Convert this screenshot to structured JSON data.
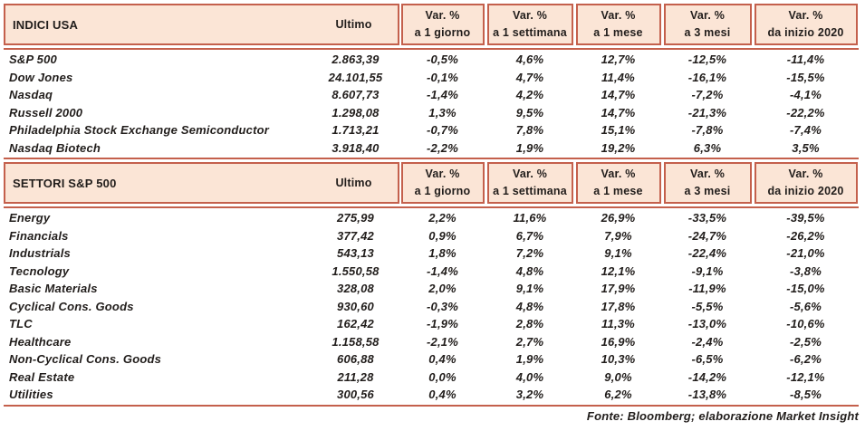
{
  "colors": {
    "header_bg": "#FBE5D6",
    "border": "#C4604C",
    "text": "#211D1B"
  },
  "footer": "Fonte: Bloomberg; elaborazione Market Insight",
  "chart_data": [
    {
      "type": "table",
      "title": "INDICI USA",
      "ultimo_label": "Ultimo",
      "column_headers": [
        {
          "line1": "Var. %",
          "line2": "a 1 giorno"
        },
        {
          "line1": "Var. %",
          "line2": "a 1 settimana"
        },
        {
          "line1": "Var. %",
          "line2": "a 1 mese"
        },
        {
          "line1": "Var. %",
          "line2": "a 3 mesi"
        },
        {
          "line1": "Var. %",
          "line2": "da inizio 2020"
        }
      ],
      "rows": [
        {
          "name": "S&P 500",
          "ultimo": "2.863,39",
          "values": [
            "-0,5%",
            "4,6%",
            "12,7%",
            "-12,5%",
            "-11,4%"
          ]
        },
        {
          "name": "Dow Jones",
          "ultimo": "24.101,55",
          "values": [
            "-0,1%",
            "4,7%",
            "11,4%",
            "-16,1%",
            "-15,5%"
          ]
        },
        {
          "name": "Nasdaq",
          "ultimo": "8.607,73",
          "values": [
            "-1,4%",
            "4,2%",
            "14,7%",
            "-7,2%",
            "-4,1%"
          ]
        },
        {
          "name": "Russell 2000",
          "ultimo": "1.298,08",
          "values": [
            "1,3%",
            "9,5%",
            "14,7%",
            "-21,3%",
            "-22,2%"
          ]
        },
        {
          "name": "Philadelphia Stock Exchange Semiconductor",
          "ultimo": "1.713,21",
          "values": [
            "-0,7%",
            "7,8%",
            "15,1%",
            "-7,8%",
            "-7,4%"
          ]
        },
        {
          "name": "Nasdaq Biotech",
          "ultimo": "3.918,40",
          "values": [
            "-2,2%",
            "1,9%",
            "19,2%",
            "6,3%",
            "3,5%"
          ]
        }
      ]
    },
    {
      "type": "table",
      "title": "SETTORI S&P 500",
      "ultimo_label": "Ultimo",
      "column_headers": [
        {
          "line1": "Var. %",
          "line2": "a 1 giorno"
        },
        {
          "line1": "Var. %",
          "line2": "a 1 settimana"
        },
        {
          "line1": "Var. %",
          "line2": "a 1 mese"
        },
        {
          "line1": "Var. %",
          "line2": "a 3 mesi"
        },
        {
          "line1": "Var. %",
          "line2": "da inizio 2020"
        }
      ],
      "rows": [
        {
          "name": "Energy",
          "ultimo": "275,99",
          "values": [
            "2,2%",
            "11,6%",
            "26,9%",
            "-33,5%",
            "-39,5%"
          ]
        },
        {
          "name": "Financials",
          "ultimo": "377,42",
          "values": [
            "0,9%",
            "6,7%",
            "7,9%",
            "-24,7%",
            "-26,2%"
          ]
        },
        {
          "name": "Industrials",
          "ultimo": "543,13",
          "values": [
            "1,8%",
            "7,2%",
            "9,1%",
            "-22,4%",
            "-21,0%"
          ]
        },
        {
          "name": "Tecnology",
          "ultimo": "1.550,58",
          "values": [
            "-1,4%",
            "4,8%",
            "12,1%",
            "-9,1%",
            "-3,8%"
          ]
        },
        {
          "name": "Basic Materials",
          "ultimo": "328,08",
          "values": [
            "2,0%",
            "9,1%",
            "17,9%",
            "-11,9%",
            "-15,0%"
          ]
        },
        {
          "name": "Cyclical Cons. Goods",
          "ultimo": "930,60",
          "values": [
            "-0,3%",
            "4,8%",
            "17,8%",
            "-5,5%",
            "-5,6%"
          ]
        },
        {
          "name": "TLC",
          "ultimo": "162,42",
          "values": [
            "-1,9%",
            "2,8%",
            "11,3%",
            "-13,0%",
            "-10,6%"
          ]
        },
        {
          "name": "Healthcare",
          "ultimo": "1.158,58",
          "values": [
            "-2,1%",
            "2,7%",
            "16,9%",
            "-2,4%",
            "-2,5%"
          ]
        },
        {
          "name": "Non-Cyclical Cons. Goods",
          "ultimo": "606,88",
          "values": [
            "0,4%",
            "1,9%",
            "10,3%",
            "-6,5%",
            "-6,2%"
          ]
        },
        {
          "name": "Real Estate",
          "ultimo": "211,28",
          "values": [
            "0,0%",
            "4,0%",
            "9,0%",
            "-14,2%",
            "-12,1%"
          ]
        },
        {
          "name": "Utilities",
          "ultimo": "300,56",
          "values": [
            "0,4%",
            "3,2%",
            "6,2%",
            "-13,8%",
            "-8,5%"
          ]
        }
      ]
    }
  ]
}
